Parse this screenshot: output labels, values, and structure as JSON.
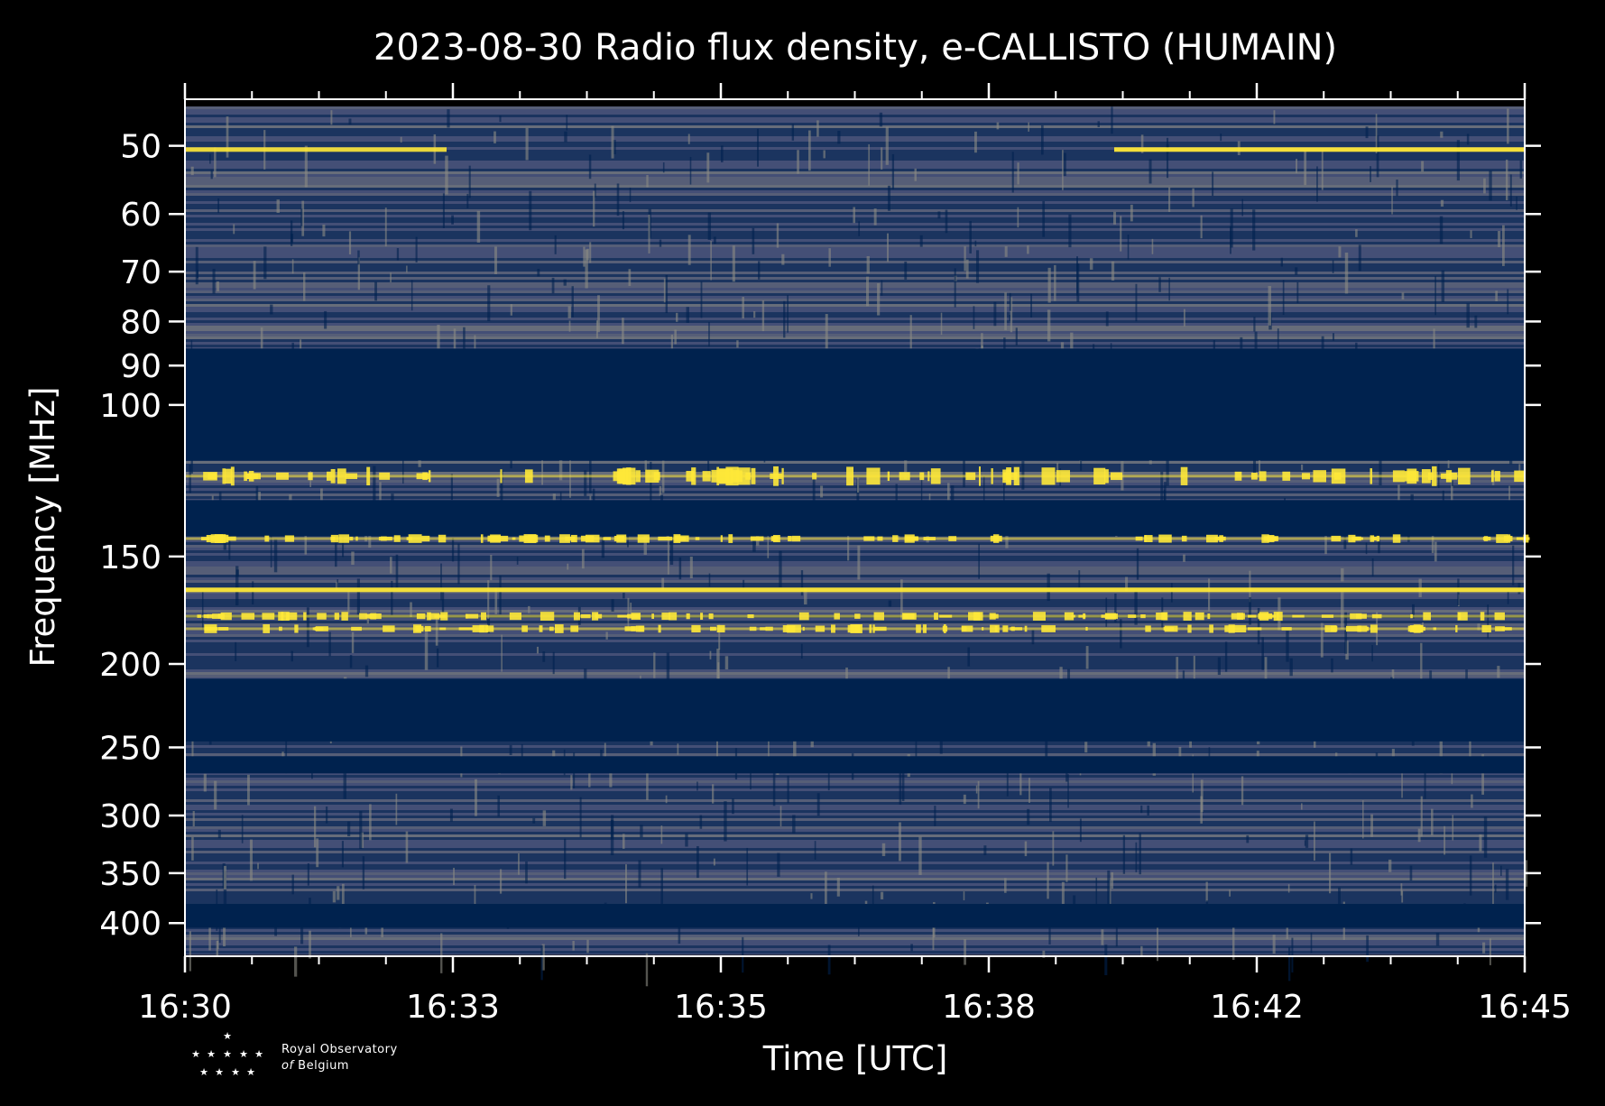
{
  "chart_data": {
    "type": "heatmap",
    "title": "2023-08-30 Radio flux density, e-CALLISTO (HUMAIN)",
    "xlabel": "Time [UTC]",
    "ylabel": "Frequency [MHz]",
    "x_ticks": [
      "16:30",
      "16:33",
      "16:35",
      "16:38",
      "16:42",
      "16:45"
    ],
    "x_range": [
      "16:30",
      "16:45"
    ],
    "x_minor_ticks_per_major": 3,
    "y_scale": "log",
    "y_range": [
      45,
      435
    ],
    "y_ticks": [
      50,
      60,
      70,
      80,
      90,
      100,
      150,
      200,
      250,
      300,
      350,
      400
    ],
    "colormap": [
      "#00224e",
      "#7c7b78",
      "#fee838"
    ],
    "quiet_bands_mhz": [
      [
        86,
        116
      ],
      [
        129,
        142
      ],
      [
        208,
        246
      ],
      [
        256,
        268
      ],
      [
        380,
        405
      ]
    ],
    "bright_lines_mhz": [
      50.5,
      121,
      143,
      164,
      176,
      182
    ],
    "colors": {
      "background": "#000000",
      "axes": "#ffffff",
      "low": "#00224e",
      "mid": "#7c7b78",
      "high": "#fee838"
    }
  },
  "logo": {
    "line1": "Royal Observatory",
    "line2_of": "of",
    "line2": "Belgium"
  }
}
